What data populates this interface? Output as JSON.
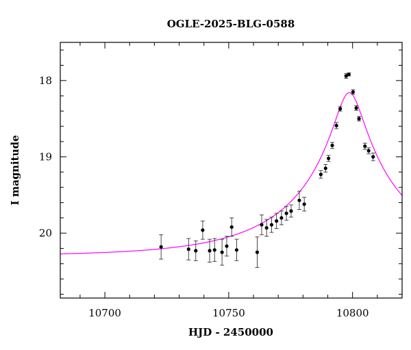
{
  "chart_data": {
    "type": "scatter",
    "title": "OGLE-2025-BLG-0588",
    "xlabel": "HJD - 2450000",
    "ylabel": "I magnitude",
    "xlim": [
      10682,
      10820
    ],
    "ylim": [
      20.85,
      17.5
    ],
    "y_inverted": true,
    "grid": false,
    "x_major_ticks": [
      10700,
      10750,
      10800
    ],
    "x_tick_labels": [
      "10700",
      "10750",
      "10800"
    ],
    "x_minor_step": 10,
    "y_major_ticks": [
      18,
      19,
      20
    ],
    "y_tick_labels": [
      "18",
      "19",
      "20"
    ],
    "y_minor_step": 0.2,
    "colors": {
      "points": "#000000",
      "model": "#ff00ff",
      "axes": "#000000"
    },
    "series": [
      {
        "kind": "points_with_errorbars",
        "points": [
          {
            "x": 10722.7,
            "y": 20.18,
            "err": 0.16
          },
          {
            "x": 10733.8,
            "y": 20.21,
            "err": 0.14
          },
          {
            "x": 10736.7,
            "y": 20.23,
            "err": 0.13
          },
          {
            "x": 10739.5,
            "y": 19.96,
            "err": 0.12
          },
          {
            "x": 10742.3,
            "y": 20.23,
            "err": 0.15
          },
          {
            "x": 10744.3,
            "y": 20.22,
            "err": 0.15
          },
          {
            "x": 10747.3,
            "y": 20.25,
            "err": 0.17
          },
          {
            "x": 10749.2,
            "y": 20.17,
            "err": 0.13
          },
          {
            "x": 10751.2,
            "y": 19.92,
            "err": 0.12
          },
          {
            "x": 10753.2,
            "y": 20.22,
            "err": 0.14
          },
          {
            "x": 10761.5,
            "y": 20.25,
            "err": 0.2
          },
          {
            "x": 10763.3,
            "y": 19.89,
            "err": 0.13
          },
          {
            "x": 10765.3,
            "y": 19.93,
            "err": 0.11
          },
          {
            "x": 10767.3,
            "y": 19.89,
            "err": 0.1
          },
          {
            "x": 10769.3,
            "y": 19.84,
            "err": 0.1
          },
          {
            "x": 10771.3,
            "y": 19.8,
            "err": 0.09
          },
          {
            "x": 10773.3,
            "y": 19.74,
            "err": 0.09
          },
          {
            "x": 10775.2,
            "y": 19.71,
            "err": 0.08
          },
          {
            "x": 10778.5,
            "y": 19.57,
            "err": 0.12
          },
          {
            "x": 10780.5,
            "y": 19.62,
            "err": 0.09
          },
          {
            "x": 10787.2,
            "y": 19.23,
            "err": 0.05
          },
          {
            "x": 10789.1,
            "y": 19.15,
            "err": 0.05
          },
          {
            "x": 10790.3,
            "y": 19.02,
            "err": 0.04
          },
          {
            "x": 10791.8,
            "y": 18.85,
            "err": 0.04
          },
          {
            "x": 10793.5,
            "y": 18.59,
            "err": 0.04
          },
          {
            "x": 10795.0,
            "y": 18.37,
            "err": 0.03
          },
          {
            "x": 10797.4,
            "y": 17.94,
            "err": 0.03
          },
          {
            "x": 10798.5,
            "y": 17.92,
            "err": 0.02
          },
          {
            "x": 10800.2,
            "y": 18.15,
            "err": 0.03
          },
          {
            "x": 10801.5,
            "y": 18.36,
            "err": 0.03
          },
          {
            "x": 10802.6,
            "y": 18.5,
            "err": 0.03
          },
          {
            "x": 10805.0,
            "y": 18.86,
            "err": 0.04
          },
          {
            "x": 10806.5,
            "y": 18.92,
            "err": 0.04
          },
          {
            "x": 10808.3,
            "y": 19.0,
            "err": 0.05
          }
        ]
      },
      {
        "kind": "model_curve",
        "model": {
          "t0": 10798.7,
          "tE": 48,
          "u0": 0.115,
          "baseline_mag": 20.3,
          "blend_fraction": 0.2
        }
      }
    ]
  }
}
